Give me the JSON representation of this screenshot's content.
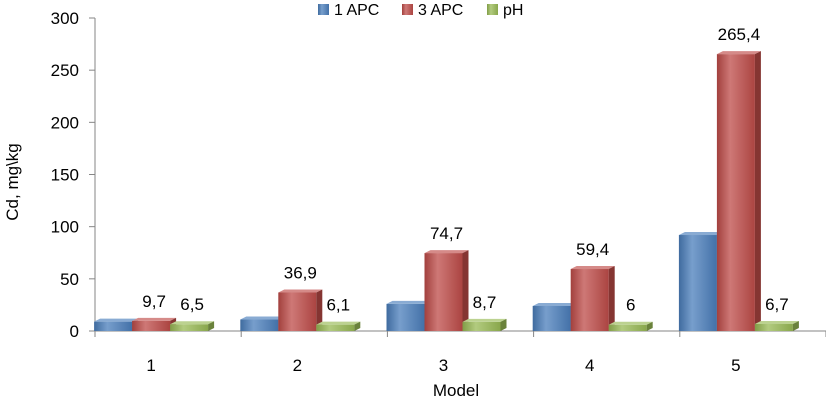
{
  "chart_data": {
    "type": "bar",
    "categories": [
      "1",
      "2",
      "3",
      "4",
      "5"
    ],
    "series": [
      {
        "name": "1 APC",
        "values": [
          9,
          11,
          26,
          24,
          92
        ],
        "labels": [
          "",
          "",
          "",
          "",
          ""
        ],
        "color": "#4A7EBB"
      },
      {
        "name": "3 APC",
        "values": [
          9.7,
          36.9,
          74.7,
          59.4,
          265.4
        ],
        "labels": [
          "9,7",
          "36,9",
          "74,7",
          "59,4",
          "265,4"
        ],
        "color": "#BE4B48"
      },
      {
        "name": "pH",
        "values": [
          6.5,
          6.1,
          8.7,
          6,
          6.7
        ],
        "labels": [
          "6,5",
          "6,1",
          "8,7",
          "6",
          "6,7"
        ],
        "color": "#98B954"
      }
    ],
    "xlabel": "Model",
    "ylabel": "Cd, mg\\kg",
    "ylim": [
      0,
      300
    ],
    "yticks": [
      0,
      50,
      100,
      150,
      200,
      250,
      300
    ],
    "legend": "top-center",
    "grid": false
  }
}
